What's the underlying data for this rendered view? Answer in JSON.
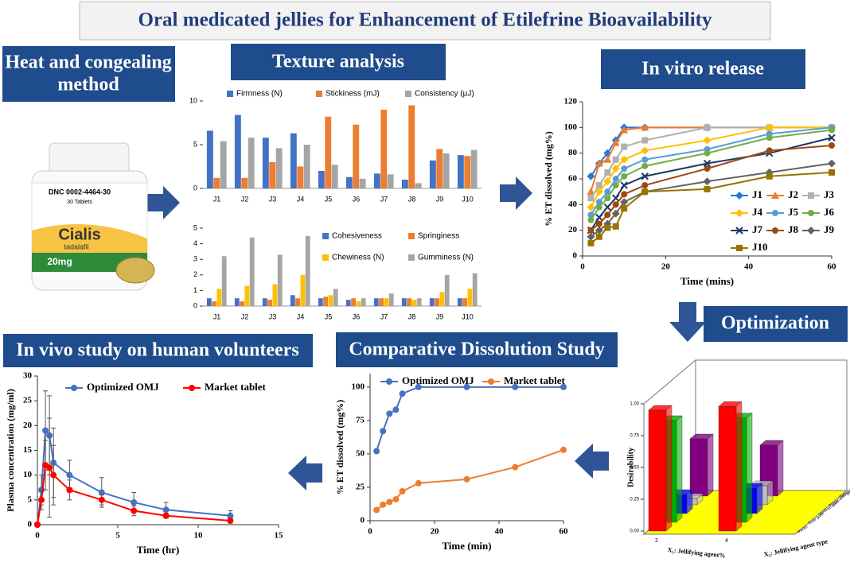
{
  "header": {
    "title": "Oral medicated jellies for Enhancement of Etilefrine Bioavailability"
  },
  "panels": {
    "method": [
      "Heat and congealing",
      "method"
    ],
    "texture": "Texture analysis",
    "release": "In vitro release",
    "optimization": "Optimization",
    "invivo": "In vivo study on human volunteers",
    "dissolution": "Comparative  Dissolution Study"
  },
  "bottle": {
    "code": "DNC 0002-4464-30",
    "count": "30 Tablets",
    "brand": "Cialis",
    "generic": "tadalafil",
    "dose": "20mg"
  },
  "chart_data": [
    {
      "type": "bar",
      "categories": [
        "J1",
        "J2",
        "J3",
        "J4",
        "J5",
        "J6",
        "J7",
        "J8",
        "J9",
        "J10"
      ],
      "ylim": [
        0,
        10
      ],
      "yticks": [
        0,
        5,
        10
      ],
      "series": [
        {
          "name": "Firmness (N)",
          "color": "#4472c4",
          "values": [
            6.6,
            8.4,
            5.8,
            6.3,
            2.0,
            1.3,
            1.7,
            1.0,
            3.2,
            3.8
          ]
        },
        {
          "name": "Stickiness (mJ)",
          "color": "#ed7d31",
          "values": [
            1.2,
            1.2,
            3.0,
            2.5,
            8.2,
            7.3,
            9.0,
            9.5,
            4.5,
            3.7
          ]
        },
        {
          "name": "Consistency (µJ)",
          "color": "#a5a5a5",
          "values": [
            5.4,
            5.8,
            4.6,
            5.0,
            2.7,
            1.1,
            1.6,
            0.6,
            4.0,
            4.4
          ]
        }
      ]
    },
    {
      "type": "bar",
      "categories": [
        "J1",
        "J2",
        "J3",
        "J4",
        "J5",
        "J6",
        "J7",
        "J8",
        "J9",
        "J10"
      ],
      "ylim": [
        0,
        5
      ],
      "yticks": [
        0,
        1,
        2,
        3,
        4,
        5
      ],
      "series": [
        {
          "name": "Cohesiveness",
          "color": "#4472c4",
          "values": [
            0.5,
            0.5,
            0.5,
            0.7,
            0.5,
            0.4,
            0.5,
            0.5,
            0.5,
            0.5
          ]
        },
        {
          "name": "Springiness",
          "color": "#ed7d31",
          "values": [
            0.3,
            0.3,
            0.4,
            0.5,
            0.6,
            0.5,
            0.5,
            0.5,
            0.5,
            0.5
          ]
        },
        {
          "name": "Chewiness (N)",
          "color": "#ffc000",
          "values": [
            1.1,
            1.3,
            1.4,
            2.0,
            0.7,
            0.3,
            0.5,
            0.4,
            0.9,
            1.1
          ]
        },
        {
          "name": "Gumminess (N)",
          "color": "#a5a5a5",
          "values": [
            3.2,
            4.4,
            3.3,
            4.5,
            1.1,
            0.5,
            0.8,
            0.5,
            2.0,
            2.1
          ]
        }
      ]
    },
    {
      "type": "line",
      "ylabel": "% ET dissolved (mg%)",
      "xlabel": "Time (mins)",
      "x": [
        2,
        4,
        6,
        8,
        10,
        15,
        30,
        45,
        60
      ],
      "xlim": [
        0,
        60
      ],
      "xticks": [
        0,
        20,
        40,
        60
      ],
      "ylim": [
        0,
        120
      ],
      "yticks": [
        0,
        20,
        40,
        60,
        80,
        100,
        120
      ],
      "series": [
        {
          "name": "J1",
          "color": "#2e75d6",
          "marker": "diamond",
          "values": [
            62,
            72,
            80,
            90,
            100,
            100,
            100,
            100,
            100
          ]
        },
        {
          "name": "J2",
          "color": "#ed7d31",
          "marker": "triangle",
          "values": [
            50,
            72,
            75,
            88,
            98,
            100,
            100,
            100,
            100
          ]
        },
        {
          "name": "J3",
          "color": "#b0b0b0",
          "marker": "square",
          "values": [
            45,
            55,
            65,
            75,
            85,
            90,
            100,
            100,
            100
          ]
        },
        {
          "name": "J4",
          "color": "#ffc000",
          "marker": "diamond",
          "values": [
            38,
            50,
            58,
            68,
            75,
            82,
            90,
            100,
            100
          ]
        },
        {
          "name": "J5",
          "color": "#5b9bd5",
          "marker": "circle",
          "values": [
            32,
            42,
            50,
            60,
            68,
            75,
            83,
            95,
            100
          ]
        },
        {
          "name": "J6",
          "color": "#70ad47",
          "marker": "circle",
          "values": [
            28,
            38,
            45,
            55,
            62,
            70,
            80,
            92,
            98
          ]
        },
        {
          "name": "J7",
          "color": "#203864",
          "marker": "x",
          "values": [
            20,
            30,
            38,
            45,
            55,
            62,
            72,
            80,
            92
          ]
        },
        {
          "name": "J8",
          "color": "#9e480e",
          "marker": "circle",
          "values": [
            20,
            25,
            32,
            40,
            48,
            55,
            68,
            82,
            86
          ]
        },
        {
          "name": "J9",
          "color": "#636363",
          "marker": "diamond",
          "values": [
            15,
            20,
            25,
            33,
            42,
            50,
            58,
            65,
            72
          ]
        },
        {
          "name": "J10",
          "color": "#997300",
          "marker": "square",
          "values": [
            10,
            15,
            22,
            23,
            37,
            50,
            52,
            62,
            65
          ]
        }
      ]
    },
    {
      "type": "line",
      "ylabel": "Plasma concentration (mg/ml)",
      "xlabel": "Time (hr)",
      "x": [
        0,
        0.25,
        0.5,
        0.75,
        1,
        2,
        4,
        6,
        8,
        12
      ],
      "xlim": [
        0,
        15
      ],
      "xticks": [
        0,
        5,
        10,
        15
      ],
      "ylim": [
        0,
        30
      ],
      "yticks": [
        0,
        5,
        10,
        15,
        20,
        25,
        30
      ],
      "series": [
        {
          "name": "Optimized OMJ",
          "color": "#4472c4",
          "marker": "circle",
          "values": [
            0,
            7,
            19,
            18,
            12.5,
            10,
            6.5,
            4.5,
            3,
            1.8
          ],
          "errors": [
            0,
            3,
            8,
            8,
            7,
            3,
            3,
            2,
            1.5,
            1
          ]
        },
        {
          "name": "Market tablet",
          "color": "#ff0000",
          "marker": "circle",
          "values": [
            0,
            5,
            12,
            11.5,
            10,
            7,
            5,
            2.8,
            1.8,
            0.8
          ],
          "errors": [
            0,
            2,
            5,
            10,
            6,
            2,
            1,
            1,
            0.5,
            0.5
          ]
        }
      ]
    },
    {
      "type": "line",
      "ylabel": "% ET dissolved (mg%)",
      "xlabel": "Time (min)",
      "x": [
        2,
        4,
        6,
        8,
        10,
        15,
        30,
        45,
        60
      ],
      "xlim": [
        0,
        60
      ],
      "xticks": [
        0,
        20,
        40,
        60
      ],
      "ylim": [
        0,
        110
      ],
      "yticks": [
        0,
        25,
        50,
        75,
        100
      ],
      "series": [
        {
          "name": "Optimized OMJ",
          "color": "#4472c4",
          "marker": "circle",
          "values": [
            52,
            67,
            80,
            83,
            95,
            100,
            100,
            100,
            100
          ]
        },
        {
          "name": "Market tablet",
          "color": "#ed7d31",
          "marker": "circle",
          "values": [
            8,
            12,
            14,
            16,
            22,
            28,
            31,
            40,
            53
          ]
        }
      ]
    },
    {
      "type": "bar3d",
      "ylabel": "Desirability",
      "xlabel": "X₁: Jellifying agent%",
      "zlabel": "X₂: Jellifying agent type",
      "categories": [
        "2",
        "4"
      ],
      "ylim": [
        0,
        1
      ],
      "yticks": [
        {
          "value": 0,
          "label": "0.00"
        },
        {
          "value": 0.25,
          "label": "0.25"
        },
        {
          "value": 0.5,
          "label": "0.50"
        },
        {
          "value": 0.75,
          "label": "0.75"
        },
        {
          "value": 1,
          "label": "1.00"
        }
      ],
      "series": [
        {
          "name": "Pectin",
          "color": "#ff0000",
          "values": [
            0.95,
            0.98
          ]
        },
        {
          "name": "Guar gum",
          "color": "#00b000",
          "values": [
            0.8,
            0.82
          ]
        },
        {
          "name": "Xanthan gum",
          "color": "#0000ff",
          "values": [
            0.15,
            0.2
          ]
        },
        {
          "name": "Tragacanth gum",
          "color": "#c0c0c0",
          "values": [
            0.05,
            0.15
          ]
        },
        {
          "name": "Sodium alginate",
          "color": "#800080",
          "values": [
            0.45,
            0.4
          ]
        }
      ]
    }
  ]
}
